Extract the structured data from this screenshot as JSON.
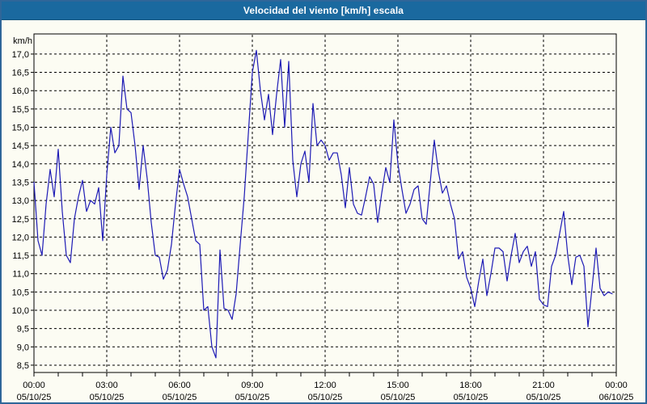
{
  "window": {
    "title_bar": "Velocidad del viento [km/h] escala"
  },
  "chart_data": {
    "type": "line",
    "title": "Velocidad del viento [km/h] escala",
    "unit_label": "km/h",
    "line_color": "#1d1ab5",
    "grid": "dashed",
    "legend": "none",
    "ylim": [
      8.3,
      17.55
    ],
    "y_gridlines": {
      "min": 8.5,
      "max": 17.0,
      "step": 0.5
    },
    "y_ticks": [
      "17,0",
      "16,5",
      "16,0",
      "15,5",
      "15,0",
      "14,5",
      "14,0",
      "13,5",
      "13,0",
      "12,5",
      "12,0",
      "11,5",
      "11,0",
      "10,5",
      "10,0",
      "9,5",
      "9,0",
      "8,5"
    ],
    "x_ticks": [
      {
        "time": "00:00",
        "date": "05/10/25"
      },
      {
        "time": "03:00",
        "date": "05/10/25"
      },
      {
        "time": "06:00",
        "date": "05/10/25"
      },
      {
        "time": "09:00",
        "date": "05/10/25"
      },
      {
        "time": "12:00",
        "date": "05/10/25"
      },
      {
        "time": "15:00",
        "date": "05/10/25"
      },
      {
        "time": "18:00",
        "date": "05/10/25"
      },
      {
        "time": "21:00",
        "date": "05/10/25"
      },
      {
        "time": "00:00",
        "date": "06/10/25"
      }
    ],
    "x_total_hours": 24,
    "x_major_grid_hours": 3,
    "x_minor_tick_hours": 1,
    "series_start": "00:00",
    "interval_minutes": 10,
    "values": [
      13.5,
      11.9,
      11.5,
      12.9,
      13.85,
      13.1,
      14.4,
      12.7,
      11.5,
      11.3,
      12.5,
      13.1,
      13.55,
      12.7,
      13.0,
      12.9,
      13.35,
      11.9,
      13.7,
      15.0,
      14.3,
      14.5,
      16.4,
      15.5,
      15.4,
      14.5,
      13.3,
      14.5,
      13.6,
      12.4,
      11.5,
      11.45,
      10.85,
      11.1,
      11.8,
      12.9,
      13.85,
      13.45,
      13.1,
      12.5,
      11.9,
      11.8,
      10.0,
      10.1,
      9.0,
      8.7,
      11.65,
      10.05,
      10.0,
      9.75,
      10.45,
      11.8,
      13.1,
      14.8,
      16.5,
      17.1,
      16.0,
      15.2,
      15.9,
      14.8,
      15.9,
      16.85,
      15.0,
      16.8,
      14.1,
      13.1,
      14.0,
      14.35,
      13.5,
      15.65,
      14.5,
      14.65,
      14.5,
      14.1,
      14.3,
      14.3,
      13.7,
      12.8,
      13.9,
      12.9,
      12.65,
      12.6,
      13.1,
      13.65,
      13.45,
      12.4,
      13.2,
      13.9,
      13.5,
      15.2,
      14.0,
      13.3,
      12.65,
      12.9,
      13.3,
      13.4,
      12.5,
      12.35,
      13.5,
      14.65,
      13.8,
      13.2,
      13.4,
      12.9,
      12.5,
      11.4,
      11.6,
      10.9,
      10.6,
      10.1,
      10.8,
      11.4,
      10.4,
      11.0,
      11.7,
      11.7,
      11.6,
      10.8,
      11.5,
      12.1,
      11.3,
      11.6,
      11.75,
      11.2,
      11.6,
      10.3,
      10.15,
      10.1,
      11.2,
      11.5,
      12.1,
      12.7,
      11.5,
      10.7,
      11.45,
      11.5,
      11.2,
      9.55,
      10.6,
      11.7,
      10.6,
      10.4,
      10.5,
      10.45
    ]
  }
}
